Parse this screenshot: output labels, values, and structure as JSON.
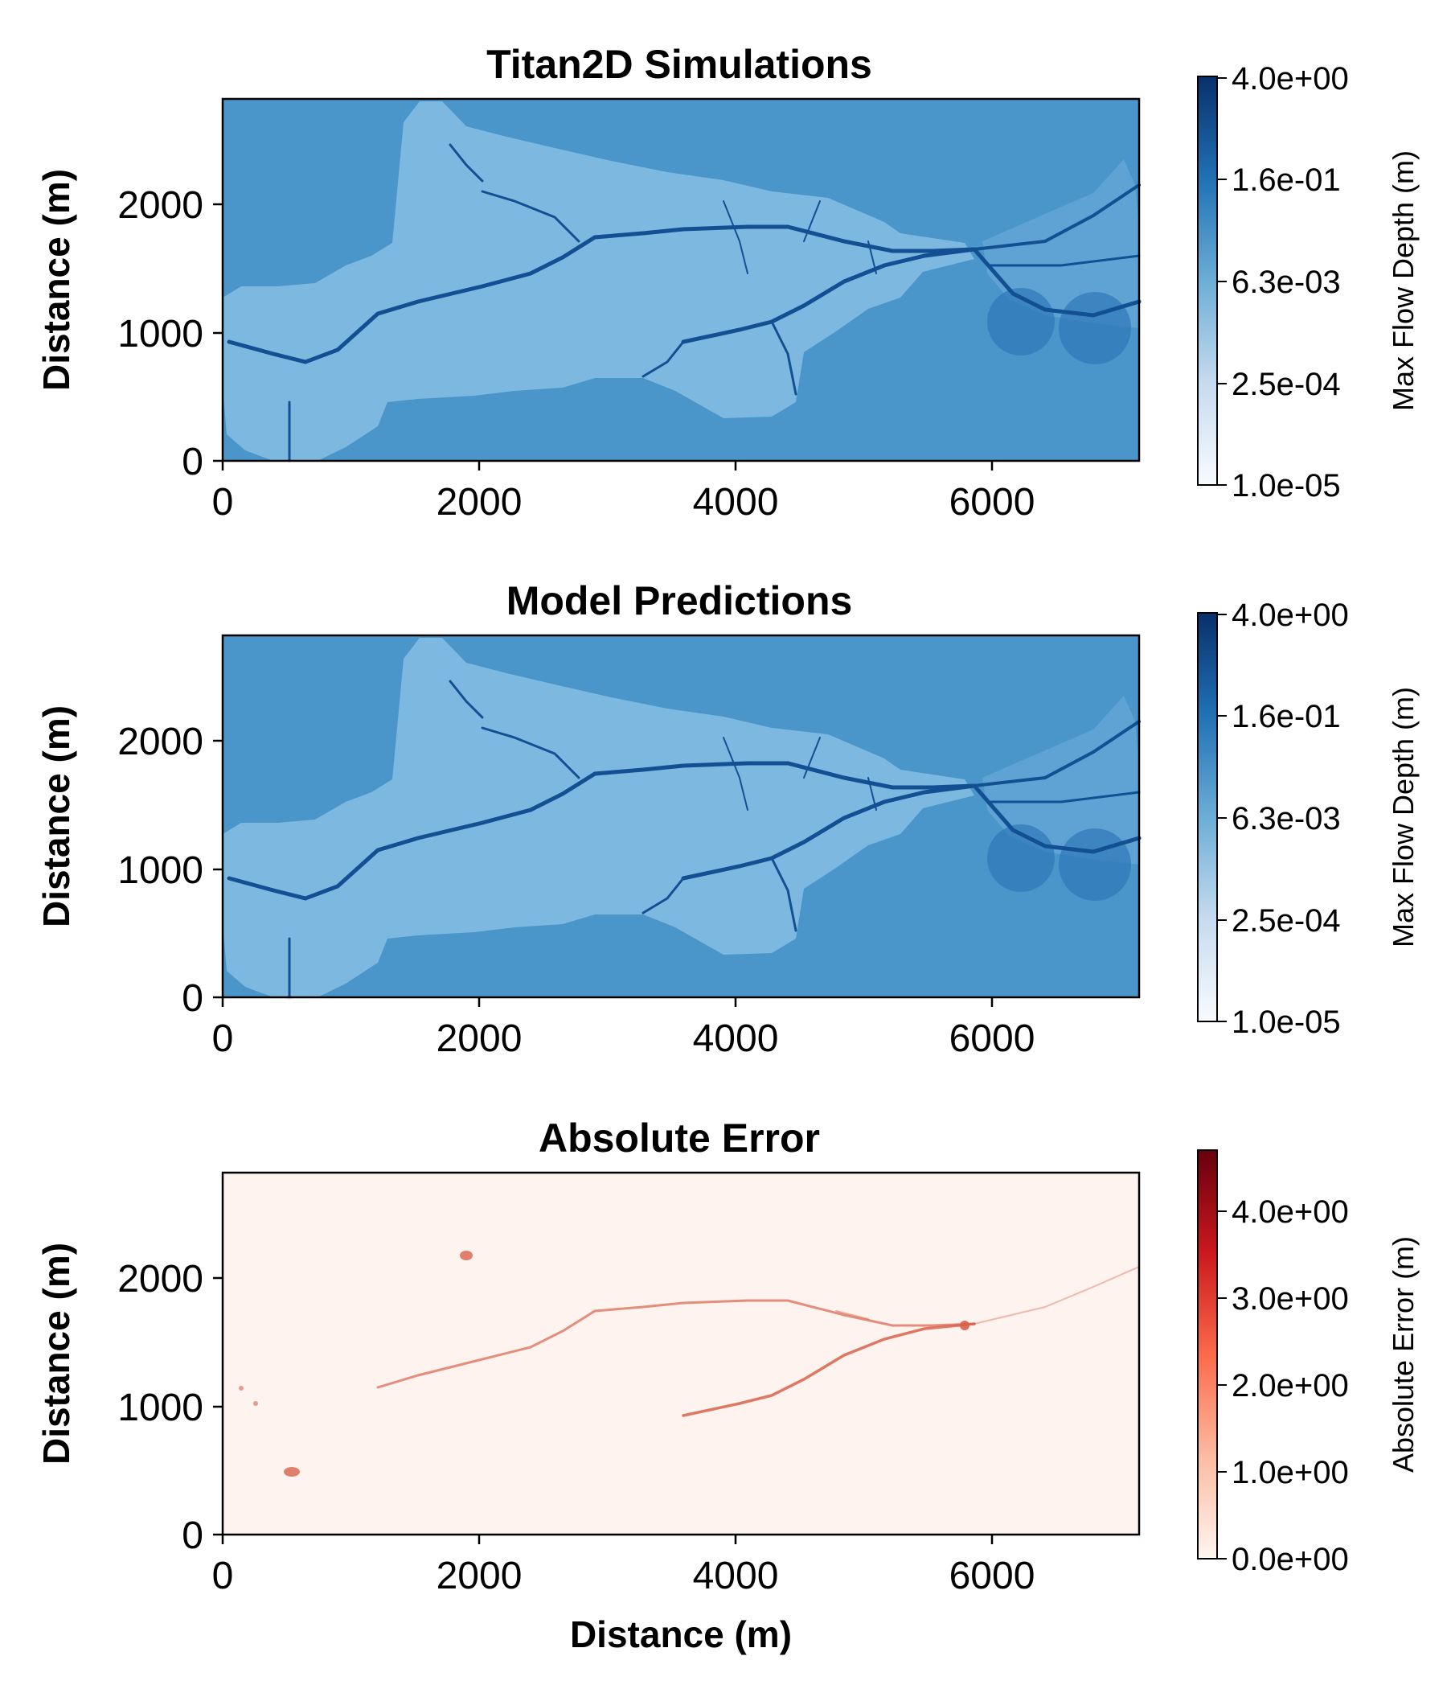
{
  "chart_data": [
    {
      "type": "heatmap",
      "title": "Titan2D Simulations",
      "ylabel": "Distance (m)",
      "xlabel": "",
      "xlim": [
        0,
        7150
      ],
      "ylim": [
        0,
        2800
      ],
      "xticks": [
        "0",
        "2000",
        "4000",
        "6000"
      ],
      "yticks": [
        "0",
        "1000",
        "2000"
      ],
      "colormap": "Blues",
      "colorbar": {
        "label": "Max Flow Depth (m)",
        "scale": "log",
        "ticks": [
          "4.0e+00",
          "1.6e-01",
          "6.3e-03",
          "2.5e-04",
          "1.0e-05"
        ]
      },
      "background_color": "#4a95c9",
      "terrain_color": "#7db8e0",
      "channel_color": "#124f93"
    },
    {
      "type": "heatmap",
      "title": "Model Predictions",
      "ylabel": "Distance (m)",
      "xlabel": "",
      "xlim": [
        0,
        7150
      ],
      "ylim": [
        0,
        2800
      ],
      "xticks": [
        "0",
        "2000",
        "4000",
        "6000"
      ],
      "yticks": [
        "0",
        "1000",
        "2000"
      ],
      "colormap": "Blues",
      "colorbar": {
        "label": "Max Flow Depth (m)",
        "scale": "log",
        "ticks": [
          "4.0e+00",
          "1.6e-01",
          "6.3e-03",
          "2.5e-04",
          "1.0e-05"
        ]
      },
      "background_color": "#4a95c9",
      "terrain_color": "#7db8e0",
      "channel_color": "#124f93"
    },
    {
      "type": "heatmap",
      "title": "Absolute Error",
      "ylabel": "Distance (m)",
      "xlabel": "Distance (m)",
      "xlim": [
        0,
        7150
      ],
      "ylim": [
        0,
        2800
      ],
      "xticks": [
        "0",
        "2000",
        "4000",
        "6000"
      ],
      "yticks": [
        "0",
        "1000",
        "2000"
      ],
      "colormap": "Reds",
      "colorbar": {
        "label": "Absolute Error (m)",
        "scale": "linear",
        "range": [
          0,
          4.7
        ],
        "ticks": [
          "4.0e+00",
          "3.0e+00",
          "2.0e+00",
          "1.0e+00",
          "0.0e+00"
        ]
      },
      "background_color": "#fef3ee",
      "channel_color": "#d8614a"
    }
  ]
}
